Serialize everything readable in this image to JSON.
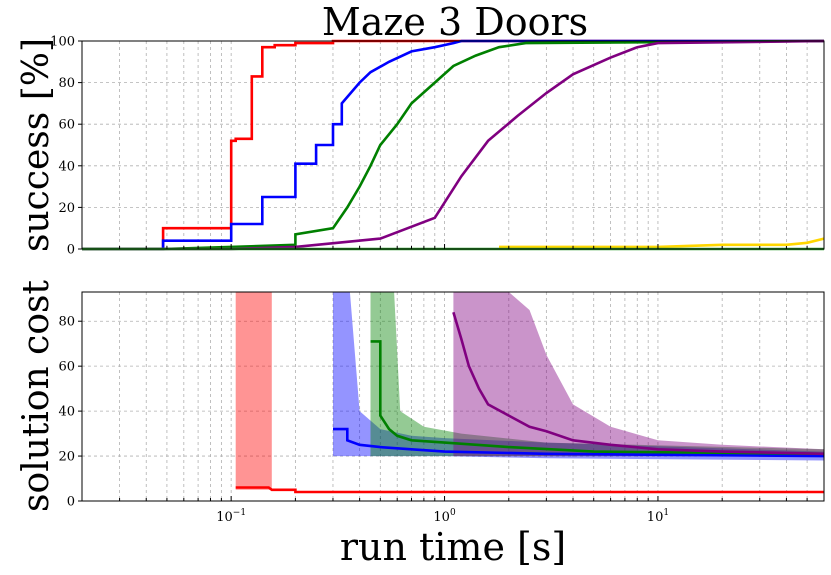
{
  "chart_data": [
    {
      "type": "line",
      "title": "Maze 3 Doors",
      "ylabel": "success [%]",
      "xscale": "log",
      "xlim": [
        0.02,
        60
      ],
      "ylim": [
        0,
        100
      ],
      "yticks": [
        0,
        20,
        40,
        60,
        80,
        100
      ],
      "grid": true,
      "series": [
        {
          "color": "#ff0000",
          "x": [
            0.02,
            0.048,
            0.048,
            0.1,
            0.1,
            0.105,
            0.105,
            0.125,
            0.125,
            0.14,
            0.14,
            0.16,
            0.16,
            0.2,
            0.2,
            0.3,
            0.3,
            60
          ],
          "y": [
            0,
            0,
            10,
            10,
            52,
            52,
            53,
            53,
            83,
            83,
            97,
            97,
            98,
            98,
            99,
            99,
            100,
            100
          ]
        },
        {
          "color": "#0000ff",
          "x": [
            0.02,
            0.048,
            0.048,
            0.1,
            0.1,
            0.14,
            0.14,
            0.2,
            0.2,
            0.25,
            0.25,
            0.3,
            0.3,
            0.33,
            0.33,
            0.4,
            0.45,
            0.55,
            0.7,
            0.9,
            1.1,
            1.2,
            60
          ],
          "y": [
            0,
            0,
            4,
            4,
            12,
            12,
            25,
            25,
            41,
            41,
            50,
            50,
            60,
            60,
            70,
            80,
            85,
            90,
            95,
            97,
            99,
            100,
            100
          ]
        },
        {
          "color": "#008000",
          "x": [
            0.02,
            0.048,
            0.1,
            0.2,
            0.2,
            0.3,
            0.35,
            0.4,
            0.45,
            0.5,
            0.6,
            0.7,
            0.9,
            1.1,
            1.4,
            1.8,
            2.4,
            60
          ],
          "y": [
            0,
            0,
            1,
            2,
            7,
            10,
            20,
            30,
            40,
            50,
            60,
            70,
            80,
            88,
            93,
            97,
            99,
            100
          ]
        },
        {
          "color": "#800080",
          "x": [
            0.02,
            0.1,
            0.2,
            0.5,
            0.9,
            1.2,
            1.6,
            2.2,
            3.0,
            4.0,
            6.0,
            8.0,
            10.0,
            60
          ],
          "y": [
            0,
            0,
            1,
            5,
            15,
            35,
            52,
            64,
            75,
            84,
            92,
            97,
            99,
            100
          ]
        },
        {
          "color": "#ffd700",
          "x": [
            1.8,
            10,
            20,
            40,
            50,
            60
          ],
          "y": [
            1,
            1,
            2,
            2,
            3,
            5
          ]
        },
        {
          "color": "#2ca02c",
          "x": [
            0.02,
            60
          ],
          "y": [
            0,
            0
          ]
        }
      ]
    },
    {
      "type": "line",
      "ylabel": "solution cost",
      "xlabel": "run time [s]",
      "xscale": "log",
      "xlim": [
        0.02,
        60
      ],
      "ylim": [
        0,
        93
      ],
      "yticks": [
        0,
        20,
        40,
        60,
        80
      ],
      "xticks": [
        {
          "v": 0.1,
          "label": "10",
          "exp": "−1"
        },
        {
          "v": 1,
          "label": "10",
          "exp": "0"
        },
        {
          "v": 10,
          "label": "10",
          "exp": "1"
        }
      ],
      "grid": true,
      "bands": [
        {
          "color": "#ff0000",
          "x": [
            0.105,
            0.155,
            0.155,
            0.2,
            0.3,
            60
          ],
          "lo": [
            5,
            5,
            5,
            4,
            4,
            4
          ],
          "hi": [
            93,
            93,
            5,
            4,
            4,
            4
          ]
        },
        {
          "color": "#0000ff",
          "x": [
            0.3,
            0.36,
            0.4,
            0.5,
            0.7,
            1.0,
            3.0,
            60
          ],
          "lo": [
            20,
            20,
            20,
            20,
            20,
            20,
            19,
            18
          ],
          "hi": [
            93,
            93,
            40,
            32,
            29,
            28,
            26,
            22
          ]
        },
        {
          "color": "#008000",
          "x": [
            0.45,
            0.5,
            0.58,
            0.62,
            0.8,
            1.2,
            3.0,
            60
          ],
          "lo": [
            20,
            20,
            20,
            20,
            20,
            20,
            20,
            20
          ],
          "hi": [
            93,
            93,
            93,
            40,
            33,
            30,
            26,
            23
          ]
        },
        {
          "color": "#800080",
          "x": [
            1.1,
            1.6,
            2.0,
            2.5,
            3.0,
            4.0,
            6.0,
            10.0,
            20.0,
            60
          ],
          "lo": [
            20,
            20,
            20,
            20,
            20,
            20,
            20,
            20,
            20,
            20
          ],
          "hi": [
            93,
            93,
            93,
            85,
            65,
            43,
            33,
            27,
            25,
            23
          ]
        }
      ],
      "series": [
        {
          "color": "#ff0000",
          "x": [
            0.105,
            0.15,
            0.155,
            0.2,
            0.2,
            60
          ],
          "y": [
            6,
            6,
            5,
            5,
            4,
            4
          ]
        },
        {
          "color": "#0000ff",
          "x": [
            0.3,
            0.35,
            0.35,
            0.4,
            0.5,
            0.7,
            1.0,
            3.0,
            60
          ],
          "y": [
            32,
            32,
            27,
            25,
            24,
            23,
            22,
            21,
            20
          ]
        },
        {
          "color": "#008000",
          "x": [
            0.45,
            0.5,
            0.5,
            0.55,
            0.6,
            0.7,
            1.0,
            2.0,
            5.0,
            60
          ],
          "y": [
            71,
            71,
            38,
            32,
            29,
            27,
            26,
            24,
            22,
            21
          ]
        },
        {
          "color": "#800080",
          "x": [
            1.1,
            1.2,
            1.3,
            1.45,
            1.6,
            2.0,
            2.5,
            3.0,
            4.0,
            6.0,
            10.0,
            20.0,
            60
          ],
          "y": [
            84,
            72,
            60,
            50,
            43,
            38,
            33,
            31,
            27,
            25,
            23,
            22,
            21
          ]
        }
      ]
    }
  ]
}
